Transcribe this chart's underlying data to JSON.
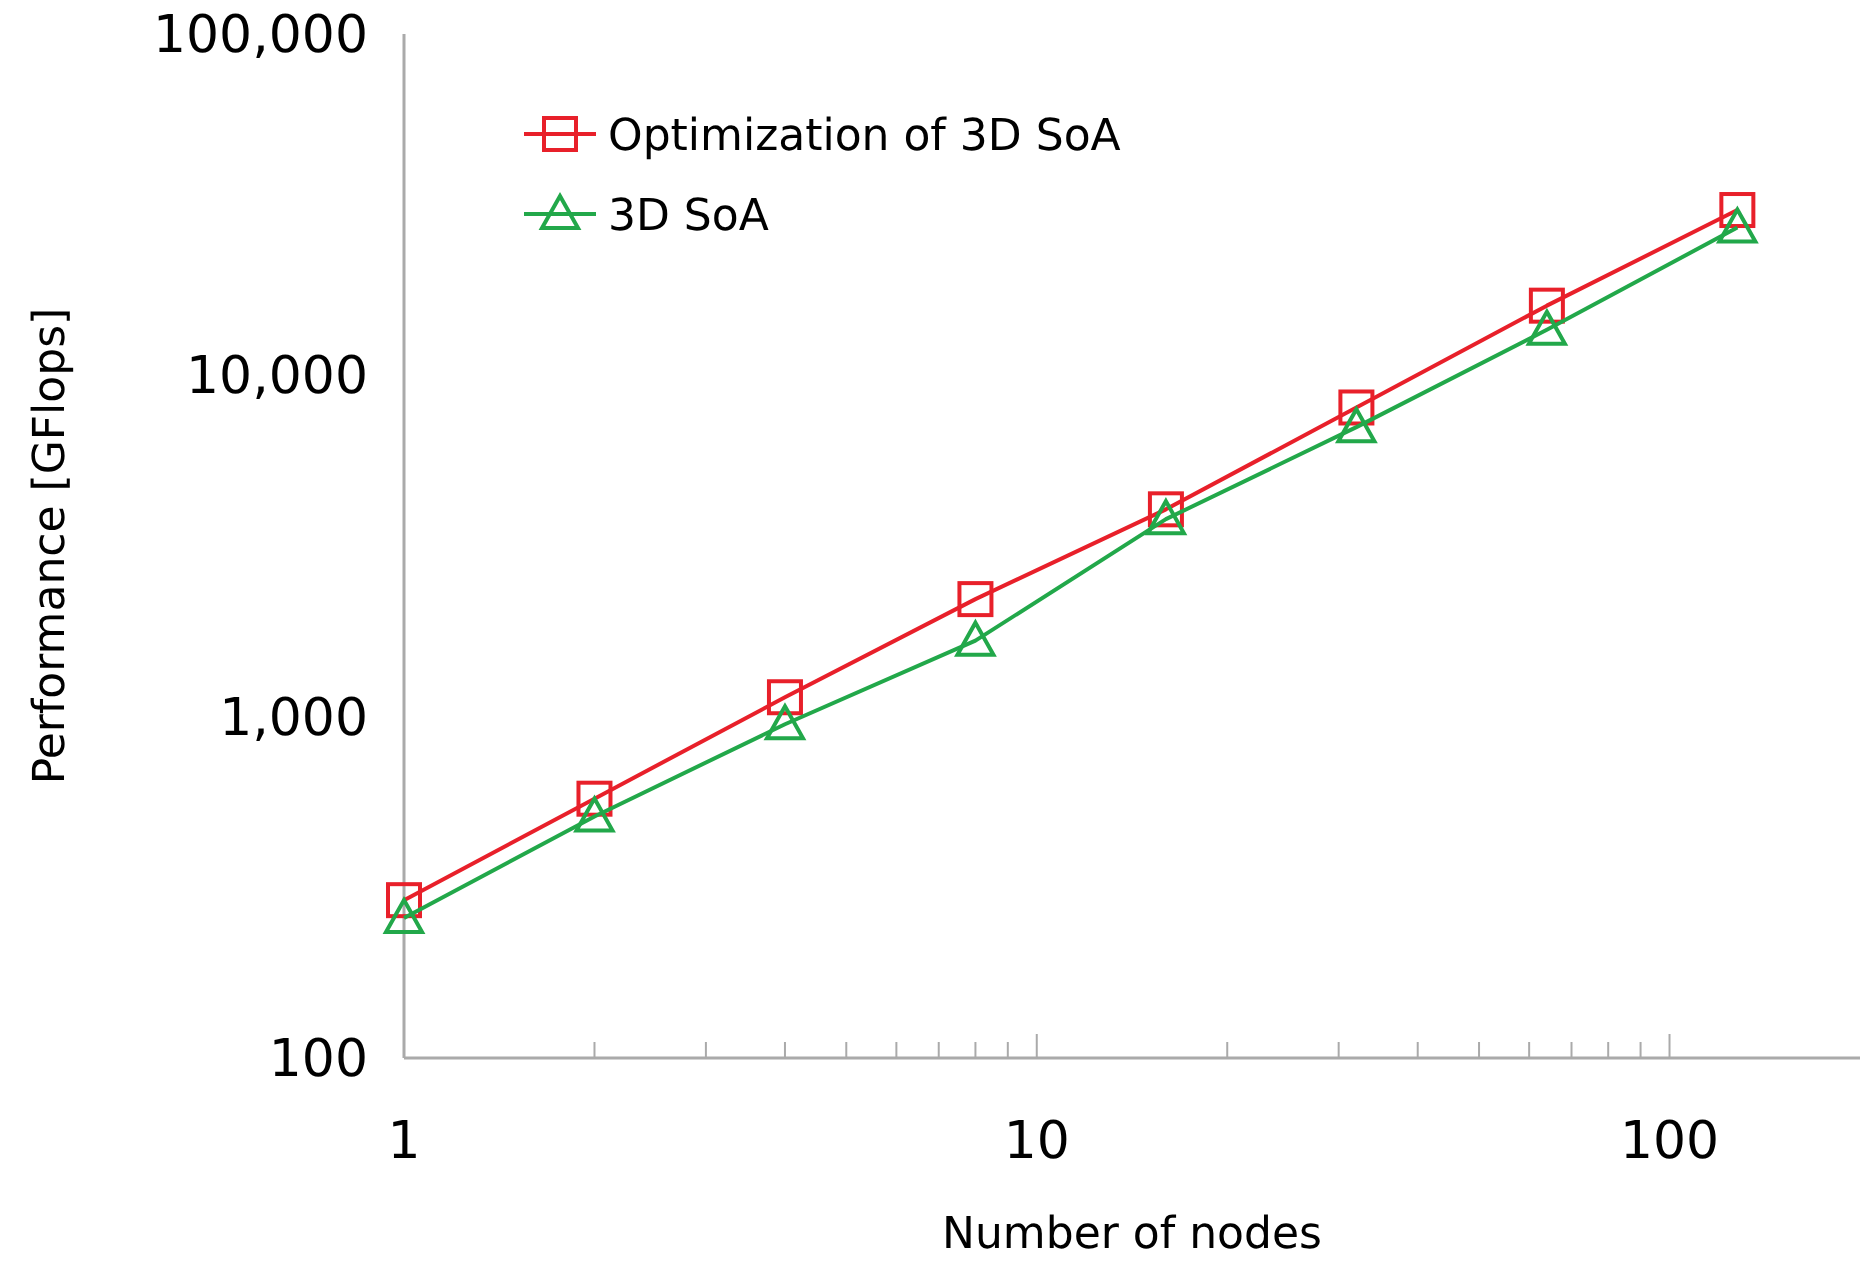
{
  "chart_data": {
    "type": "line",
    "xlabel": "Number of nodes",
    "ylabel": "Performance [GFlops]",
    "log": "xy",
    "x": [
      1,
      2,
      4,
      8,
      16,
      32,
      64,
      128
    ],
    "xlim": [
      1,
      200
    ],
    "xticks": [
      1,
      {
        "value": 2,
        "label": null
      },
      {
        "value": 3,
        "label": null
      },
      {
        "value": 4,
        "label": null
      },
      {
        "value": 5,
        "label": null
      },
      {
        "value": 6,
        "label": null
      },
      {
        "value": 7,
        "label": null
      },
      {
        "value": 8,
        "label": null
      },
      {
        "value": 9,
        "label": null
      },
      10,
      {
        "value": 20,
        "label": null
      },
      {
        "value": 30,
        "label": null
      },
      {
        "value": 40,
        "label": null
      },
      {
        "value": 50,
        "label": null
      },
      {
        "value": 60,
        "label": null
      },
      {
        "value": 70,
        "label": null
      },
      {
        "value": 80,
        "label": null
      },
      {
        "value": 90,
        "label": null
      },
      100
    ],
    "ylim": [
      100,
      100000
    ],
    "yticks": [
      100,
      {
        "value": 1000,
        "label": "1,000"
      },
      {
        "value": 10000,
        "label": "10,000"
      },
      {
        "value": 100000,
        "label": "100,000"
      }
    ],
    "legend": "top left",
    "line_style": "solid",
    "series": [
      {
        "name": "Optimization of 3D SoA",
        "color": "#e8202a",
        "marker": "square",
        "values": [
          290,
          575,
          1140,
          2210,
          4050,
          8050,
          16000,
          30500
        ]
      },
      {
        "name": "3D SoA",
        "color": "#22a84a",
        "marker": "triangle",
        "values": [
          257,
          510,
          950,
          1670,
          3790,
          7050,
          13600,
          27100
        ]
      }
    ]
  }
}
